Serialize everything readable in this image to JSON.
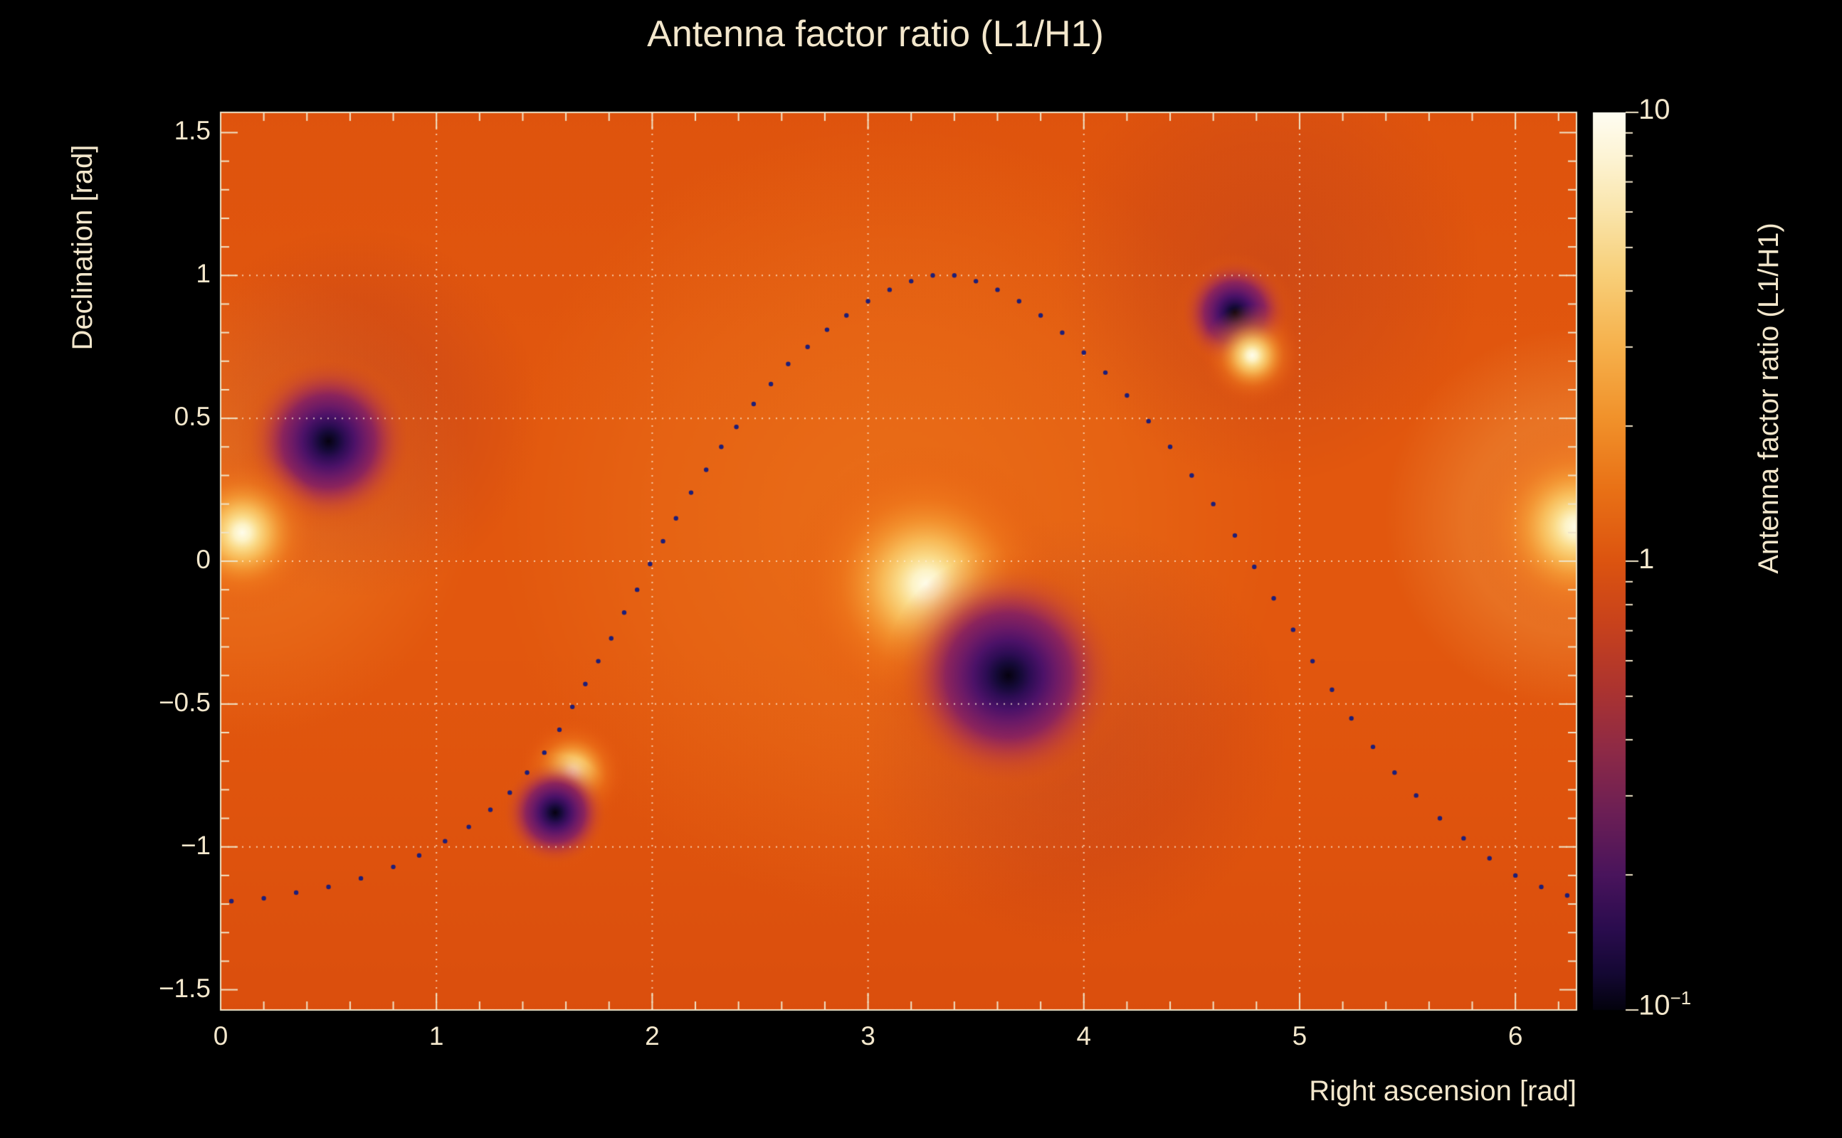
{
  "chart_data": {
    "type": "heatmap",
    "title": "Antenna factor ratio (L1/H1)",
    "xlabel": "Right ascension [rad]",
    "ylabel": "Declination [rad]",
    "x_range": [
      0,
      6.2832
    ],
    "y_range": [
      -1.5708,
      1.5708
    ],
    "x_ticks": {
      "major_values": [
        0,
        1,
        2,
        3,
        4,
        5,
        6
      ],
      "major_labels": [
        "0",
        "1",
        "2",
        "3",
        "4",
        "5",
        "6"
      ],
      "minor_step": 0.2
    },
    "y_ticks": {
      "major_values": [
        1.5,
        1,
        0.5,
        0,
        -0.5,
        -1,
        -1.5
      ],
      "major_labels": [
        "1.5",
        "1",
        "0.5",
        "0",
        "−0.5",
        "−1",
        "−1.5"
      ],
      "minor_step": 0.1
    },
    "grid_lines": {
      "x": [
        1,
        2,
        3,
        4,
        5,
        6
      ],
      "y": [
        -1,
        -0.5,
        0,
        0.5,
        1
      ]
    },
    "colorbar": {
      "label": "Antenna factor ratio (L1/H1)",
      "scale": "log",
      "min": 0.1,
      "max": 10,
      "tick_labels": [
        {
          "text": "10",
          "value": 10
        },
        {
          "text": "1",
          "value": 1
        },
        {
          "text": "10",
          "exp": "−1",
          "value": 0.1
        }
      ],
      "gradient_top_to_bottom": [
        [
          0,
          "#fffdf2"
        ],
        [
          0.05,
          "#fdf4d4"
        ],
        [
          0.11,
          "#fae5ab"
        ],
        [
          0.18,
          "#f8cf79"
        ],
        [
          0.26,
          "#f6b14c"
        ],
        [
          0.34,
          "#f1922b"
        ],
        [
          0.42,
          "#e97116"
        ],
        [
          0.5,
          "#dc5410"
        ],
        [
          0.57,
          "#c8421c"
        ],
        [
          0.64,
          "#ad342f"
        ],
        [
          0.71,
          "#8e2a46"
        ],
        [
          0.78,
          "#6c1f55"
        ],
        [
          0.85,
          "#49145c"
        ],
        [
          0.91,
          "#2a0c4e"
        ],
        [
          0.96,
          "#140833"
        ],
        [
          1,
          "#03020d"
        ]
      ]
    },
    "field": {
      "base_value": 1,
      "base_color": "#e2570e",
      "features": [
        {
          "name": "null-dark-1",
          "kind": "dark",
          "ra": 0.5,
          "dec": 0.42,
          "radius_px": 130
        },
        {
          "name": "peak-bright-1",
          "kind": "bright",
          "ra": 0.1,
          "dec": 0.1,
          "radius_px": 115
        },
        {
          "name": "null-dark-2",
          "kind": "dark",
          "ra": 4.7,
          "dec": 0.87,
          "radius_px": 85
        },
        {
          "name": "peak-bright-2",
          "kind": "bright",
          "ra": 4.78,
          "dec": 0.72,
          "radius_px": 72
        },
        {
          "name": "peak-bright-3",
          "kind": "bright",
          "ra": 3.27,
          "dec": -0.08,
          "radius_px": 195
        },
        {
          "name": "null-dark-3",
          "kind": "dark",
          "ra": 3.65,
          "dec": -0.4,
          "radius_px": 175
        },
        {
          "name": "peak-bright-4",
          "kind": "bright",
          "ra": 1.63,
          "dec": -0.74,
          "radius_px": 78
        },
        {
          "name": "null-dark-4",
          "kind": "dark",
          "ra": 1.55,
          "dec": -0.88,
          "radius_px": 82
        },
        {
          "name": "peak-bright-edge",
          "kind": "bright",
          "ra": 6.28,
          "dec": 0.12,
          "radius_px": 150
        }
      ],
      "ambient": [
        {
          "ra": 3.1,
          "dec": 0.15,
          "radius_px": 560,
          "rgb": "246,145,40",
          "alpha": 0.4
        },
        {
          "ra": 0.1,
          "dec": 0.2,
          "radius_px": 330,
          "rgb": "247,150,48",
          "alpha": 0.45
        },
        {
          "ra": 6.28,
          "dec": 0.15,
          "radius_px": 270,
          "rgb": "250,190,95",
          "alpha": 0.5
        },
        {
          "ra": 4.85,
          "dec": 1.02,
          "radius_px": 300,
          "rgb": "165,48,40",
          "alpha": 0.28
        },
        {
          "ra": 3.95,
          "dec": -0.6,
          "radius_px": 300,
          "rgb": "158,40,48",
          "alpha": 0.26
        },
        {
          "ra": 0.62,
          "dec": 0.52,
          "radius_px": 260,
          "rgb": "150,38,52",
          "alpha": 0.26
        }
      ]
    },
    "track": {
      "name": "source-sky-track",
      "dot_color": "#1e1e78",
      "points": [
        [
          0.05,
          -1.19
        ],
        [
          0.2,
          -1.18
        ],
        [
          0.35,
          -1.16
        ],
        [
          0.5,
          -1.14
        ],
        [
          0.65,
          -1.11
        ],
        [
          0.8,
          -1.07
        ],
        [
          0.92,
          -1.03
        ],
        [
          1.04,
          -0.98
        ],
        [
          1.15,
          -0.93
        ],
        [
          1.25,
          -0.87
        ],
        [
          1.34,
          -0.81
        ],
        [
          1.42,
          -0.74
        ],
        [
          1.5,
          -0.67
        ],
        [
          1.57,
          -0.59
        ],
        [
          1.63,
          -0.51
        ],
        [
          1.69,
          -0.43
        ],
        [
          1.75,
          -0.35
        ],
        [
          1.81,
          -0.27
        ],
        [
          1.87,
          -0.18
        ],
        [
          1.93,
          -0.1
        ],
        [
          1.99,
          -0.01
        ],
        [
          2.05,
          0.07
        ],
        [
          2.11,
          0.15
        ],
        [
          2.18,
          0.24
        ],
        [
          2.25,
          0.32
        ],
        [
          2.32,
          0.4
        ],
        [
          2.39,
          0.47
        ],
        [
          2.47,
          0.55
        ],
        [
          2.55,
          0.62
        ],
        [
          2.63,
          0.69
        ],
        [
          2.72,
          0.75
        ],
        [
          2.81,
          0.81
        ],
        [
          2.9,
          0.86
        ],
        [
          3.0,
          0.91
        ],
        [
          3.1,
          0.95
        ],
        [
          3.2,
          0.98
        ],
        [
          3.3,
          1.0
        ],
        [
          3.4,
          1.0
        ],
        [
          3.5,
          0.98
        ],
        [
          3.6,
          0.95
        ],
        [
          3.7,
          0.91
        ],
        [
          3.8,
          0.86
        ],
        [
          3.9,
          0.8
        ],
        [
          4.0,
          0.73
        ],
        [
          4.1,
          0.66
        ],
        [
          4.2,
          0.58
        ],
        [
          4.3,
          0.49
        ],
        [
          4.4,
          0.4
        ],
        [
          4.5,
          0.3
        ],
        [
          4.6,
          0.2
        ],
        [
          4.7,
          0.09
        ],
        [
          4.79,
          -0.02
        ],
        [
          4.88,
          -0.13
        ],
        [
          4.97,
          -0.24
        ],
        [
          5.06,
          -0.35
        ],
        [
          5.15,
          -0.45
        ],
        [
          5.24,
          -0.55
        ],
        [
          5.34,
          -0.65
        ],
        [
          5.44,
          -0.74
        ],
        [
          5.54,
          -0.82
        ],
        [
          5.65,
          -0.9
        ],
        [
          5.76,
          -0.97
        ],
        [
          5.88,
          -1.04
        ],
        [
          6.0,
          -1.1
        ],
        [
          6.12,
          -1.14
        ],
        [
          6.24,
          -1.17
        ]
      ]
    },
    "colors": {
      "background": "#000000",
      "text": "#f3e7cc",
      "axis": "#f0e4c8",
      "grid": "rgba(255,240,216,0.75)"
    }
  }
}
